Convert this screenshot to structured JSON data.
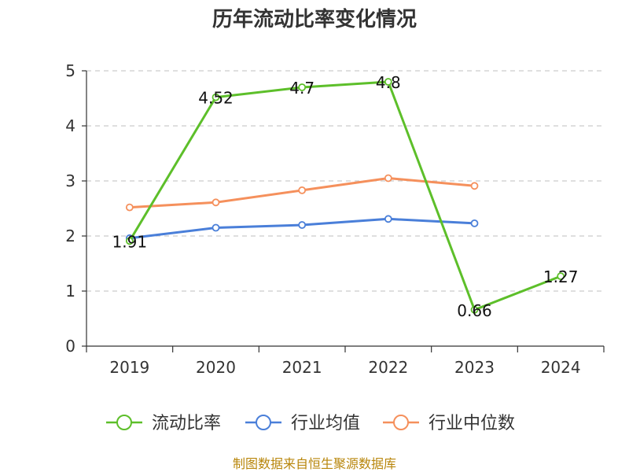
{
  "chart_data": {
    "type": "line",
    "title": "历年流动比率变化情况",
    "xlabel": "",
    "ylabel": "",
    "categories": [
      "2019",
      "2020",
      "2021",
      "2022",
      "2023",
      "2024"
    ],
    "ylim": [
      0,
      5
    ],
    "yticks": [
      0,
      1,
      2,
      3,
      4,
      5
    ],
    "grid": true,
    "legend_position": "bottom",
    "series": [
      {
        "name": "流动比率",
        "color": "#5dbf2a",
        "values": [
          1.91,
          4.52,
          4.7,
          4.8,
          0.66,
          1.27
        ],
        "labels": [
          "1.91",
          "4.52",
          "4.7",
          "4.8",
          "0.66",
          "1.27"
        ],
        "show_labels": true
      },
      {
        "name": "行业均值",
        "color": "#4a7fd9",
        "values": [
          1.96,
          2.15,
          2.2,
          2.31,
          2.23,
          null
        ],
        "show_labels": false
      },
      {
        "name": "行业中位数",
        "color": "#f5905c",
        "values": [
          2.52,
          2.61,
          2.83,
          3.05,
          2.91,
          null
        ],
        "show_labels": false
      }
    ]
  },
  "source_text": "制图数据来自恒生聚源数据库"
}
